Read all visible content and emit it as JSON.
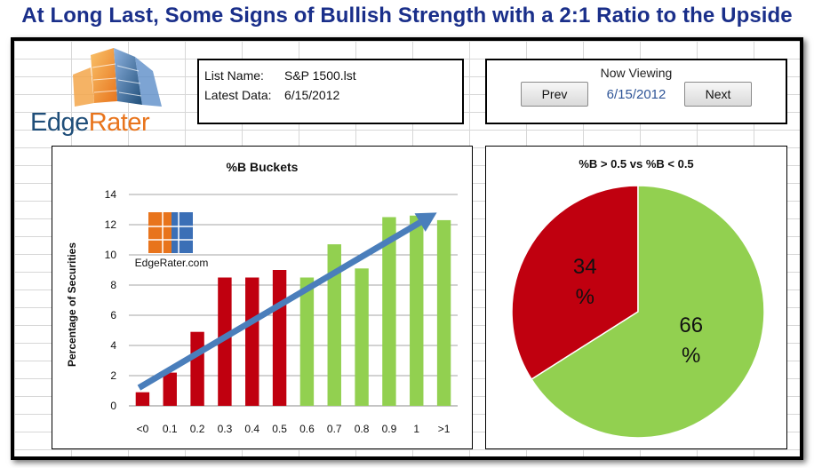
{
  "headline": "At Long Last, Some Signs of Bullish Strength with a 2:1 Ratio to the Upside",
  "logo": {
    "brand_left": "Edge",
    "brand_right": "Rater"
  },
  "info": {
    "list_name_label": "List Name:",
    "list_name_value": "S&P 1500.lst",
    "latest_data_label": "Latest Data:",
    "latest_data_value": "6/15/2012"
  },
  "nav": {
    "title": "Now Viewing",
    "prev_label": "Prev",
    "date": "6/15/2012",
    "next_label": "Next"
  },
  "colors": {
    "red": "#c0000f",
    "green": "#92d050",
    "arrow": "#4a7ebb",
    "headline": "#1a2f8a"
  },
  "chart_data": [
    {
      "type": "bar",
      "title": "%B Buckets",
      "ylabel": "Percentage of Securities",
      "xlabel": "",
      "ylim": [
        0,
        14
      ],
      "yticks": [
        0,
        2,
        4,
        6,
        8,
        10,
        12,
        14
      ],
      "categories": [
        "<0",
        "0.1",
        "0.2",
        "0.3",
        "0.4",
        "0.5",
        "0.6",
        "0.7",
        "0.8",
        "0.9",
        "1",
        ">1"
      ],
      "values": [
        0.9,
        2.2,
        4.9,
        8.5,
        8.5,
        9.0,
        8.5,
        10.7,
        9.1,
        12.5,
        12.6,
        12.3
      ],
      "bar_colors": [
        "red",
        "red",
        "red",
        "red",
        "red",
        "red",
        "green",
        "green",
        "green",
        "green",
        "green",
        "green"
      ],
      "watermark": "EdgeRater.com",
      "grid": true,
      "annotation": "trend arrow from <0 to >1"
    },
    {
      "type": "pie",
      "title": "%B > 0.5 vs %B < 0.5",
      "slices": [
        {
          "label": "34\n%",
          "value": 34,
          "color": "red"
        },
        {
          "label": "66\n%",
          "value": 66,
          "color": "green"
        }
      ]
    }
  ]
}
